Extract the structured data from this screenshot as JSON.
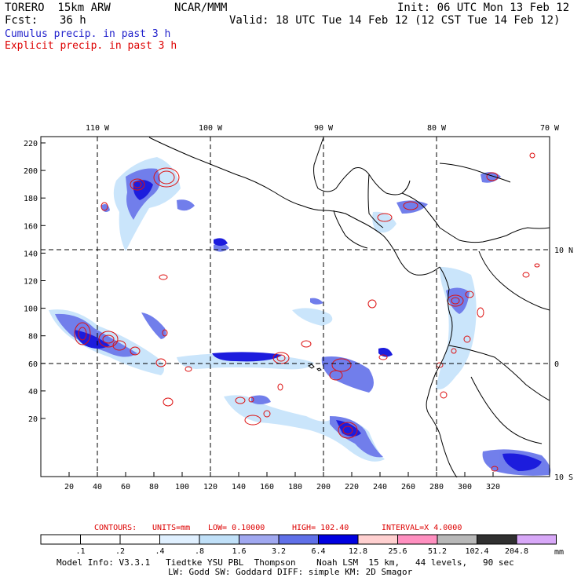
{
  "header": {
    "model_name": "TORERO  15km ARW",
    "center": "NCAR/MMM",
    "init": "Init: 06 UTC Mon 13 Feb 12",
    "fcst_label": "Fcst:",
    "fcst_value": "36 h",
    "valid": "Valid: 18 UTC Tue 14 Feb 12 (12 CST Tue 14 Feb 12)"
  },
  "legend": {
    "cumulus": "Cumulus precip. in past 3 h",
    "explicit": "Explicit precip. in past 3 h"
  },
  "map": {
    "top_lon_labels": [
      "110 W",
      "100 W",
      "90 W",
      "80 W",
      "70 W"
    ],
    "right_lat_labels": [
      "10 N",
      "0",
      "10 S"
    ],
    "y_ticks": [
      "220",
      "200",
      "180",
      "160",
      "140",
      "120",
      "100",
      "80",
      "60",
      "40",
      "20"
    ],
    "x_ticks": [
      "20",
      "40",
      "60",
      "80",
      "100",
      "120",
      "140",
      "160",
      "180",
      "200",
      "220",
      "240",
      "260",
      "280",
      "300",
      "320"
    ]
  },
  "contours_info": {
    "label": "CONTOURS:",
    "units": "UNITS=mm",
    "low": "LOW= 0.10000",
    "high": "HIGH= 102.40",
    "interval": "INTERVAL=X 4.0000"
  },
  "colorbar": {
    "unit": "mm",
    "labels": [
      ".1",
      ".2",
      ".4",
      ".8",
      "1.6",
      "3.2",
      "6.4",
      "12.8",
      "25.6",
      "51.2",
      "102.4",
      "204.8"
    ],
    "colors": [
      "#ffffff",
      "#ffffff",
      "#ffffff",
      "#e0f0ff",
      "#c0e0f8",
      "#a0a8f0",
      "#6070e8",
      "#0000e0",
      "#ffd0d0",
      "#ff90c0",
      "#b8b8b8",
      "#303030",
      "#d8a8f8"
    ]
  },
  "model_info": {
    "line1": "Model Info: V3.3.1   Tiedtke YSU PBL  Thompson    Noah LSM  15 km,   44 levels,   90 sec",
    "line2": "LW: Godd SW: Goddard DIFF: simple KM: 2D Smagor"
  }
}
